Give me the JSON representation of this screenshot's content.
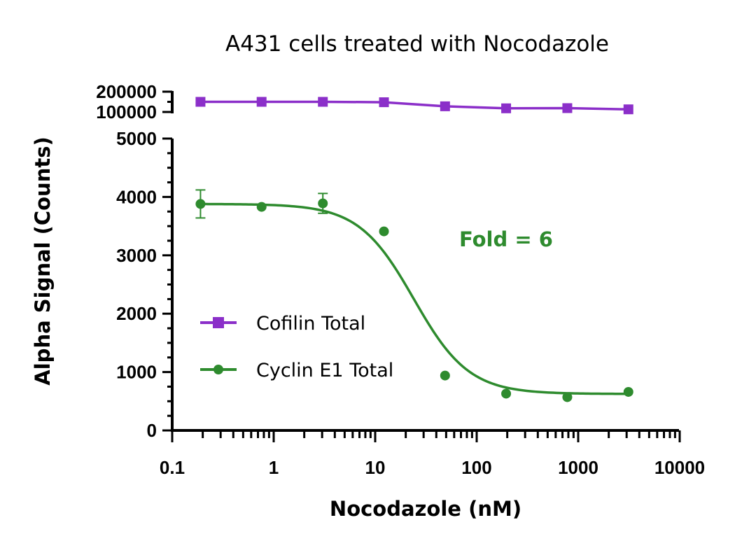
{
  "chart_data": {
    "type": "line",
    "title": "A431 cells treated with Nocodazole",
    "xlabel": "Nocodazole (nM)",
    "ylabel": "Alpha Signal (Counts)",
    "x_scale": "log",
    "xlim": [
      0.1,
      10000
    ],
    "x_ticks": [
      "0.1",
      "1",
      "10",
      "100",
      "1000",
      "10000"
    ],
    "y_axis_break": true,
    "y_lower_range": [
      0,
      5000
    ],
    "y_lower_ticks": [
      "0",
      "1000",
      "2000",
      "3000",
      "4000",
      "5000"
    ],
    "y_upper_range": [
      100000,
      200000
    ],
    "y_upper_ticks": [
      "100000",
      "200000"
    ],
    "annotation": "Fold = 6",
    "legend_position": "lower-left",
    "series": [
      {
        "name": "Cofilin Total",
        "color": "#8B2FC9",
        "marker": "square",
        "x": [
          0.19,
          0.76,
          3.05,
          12.2,
          48.8,
          195,
          781,
          3125
        ],
        "y": [
          150000,
          150000,
          150000,
          148000,
          128000,
          118000,
          119000,
          113000
        ]
      },
      {
        "name": "Cyclin E1 Total",
        "color": "#2E8B2E",
        "marker": "circle",
        "x": [
          0.19,
          0.76,
          3.05,
          12.2,
          48.8,
          195,
          781,
          3125
        ],
        "y": [
          3880,
          3830,
          3890,
          3410,
          940,
          630,
          570,
          660
        ],
        "error": [
          240,
          0,
          170,
          0,
          0,
          0,
          0,
          0
        ]
      }
    ]
  }
}
